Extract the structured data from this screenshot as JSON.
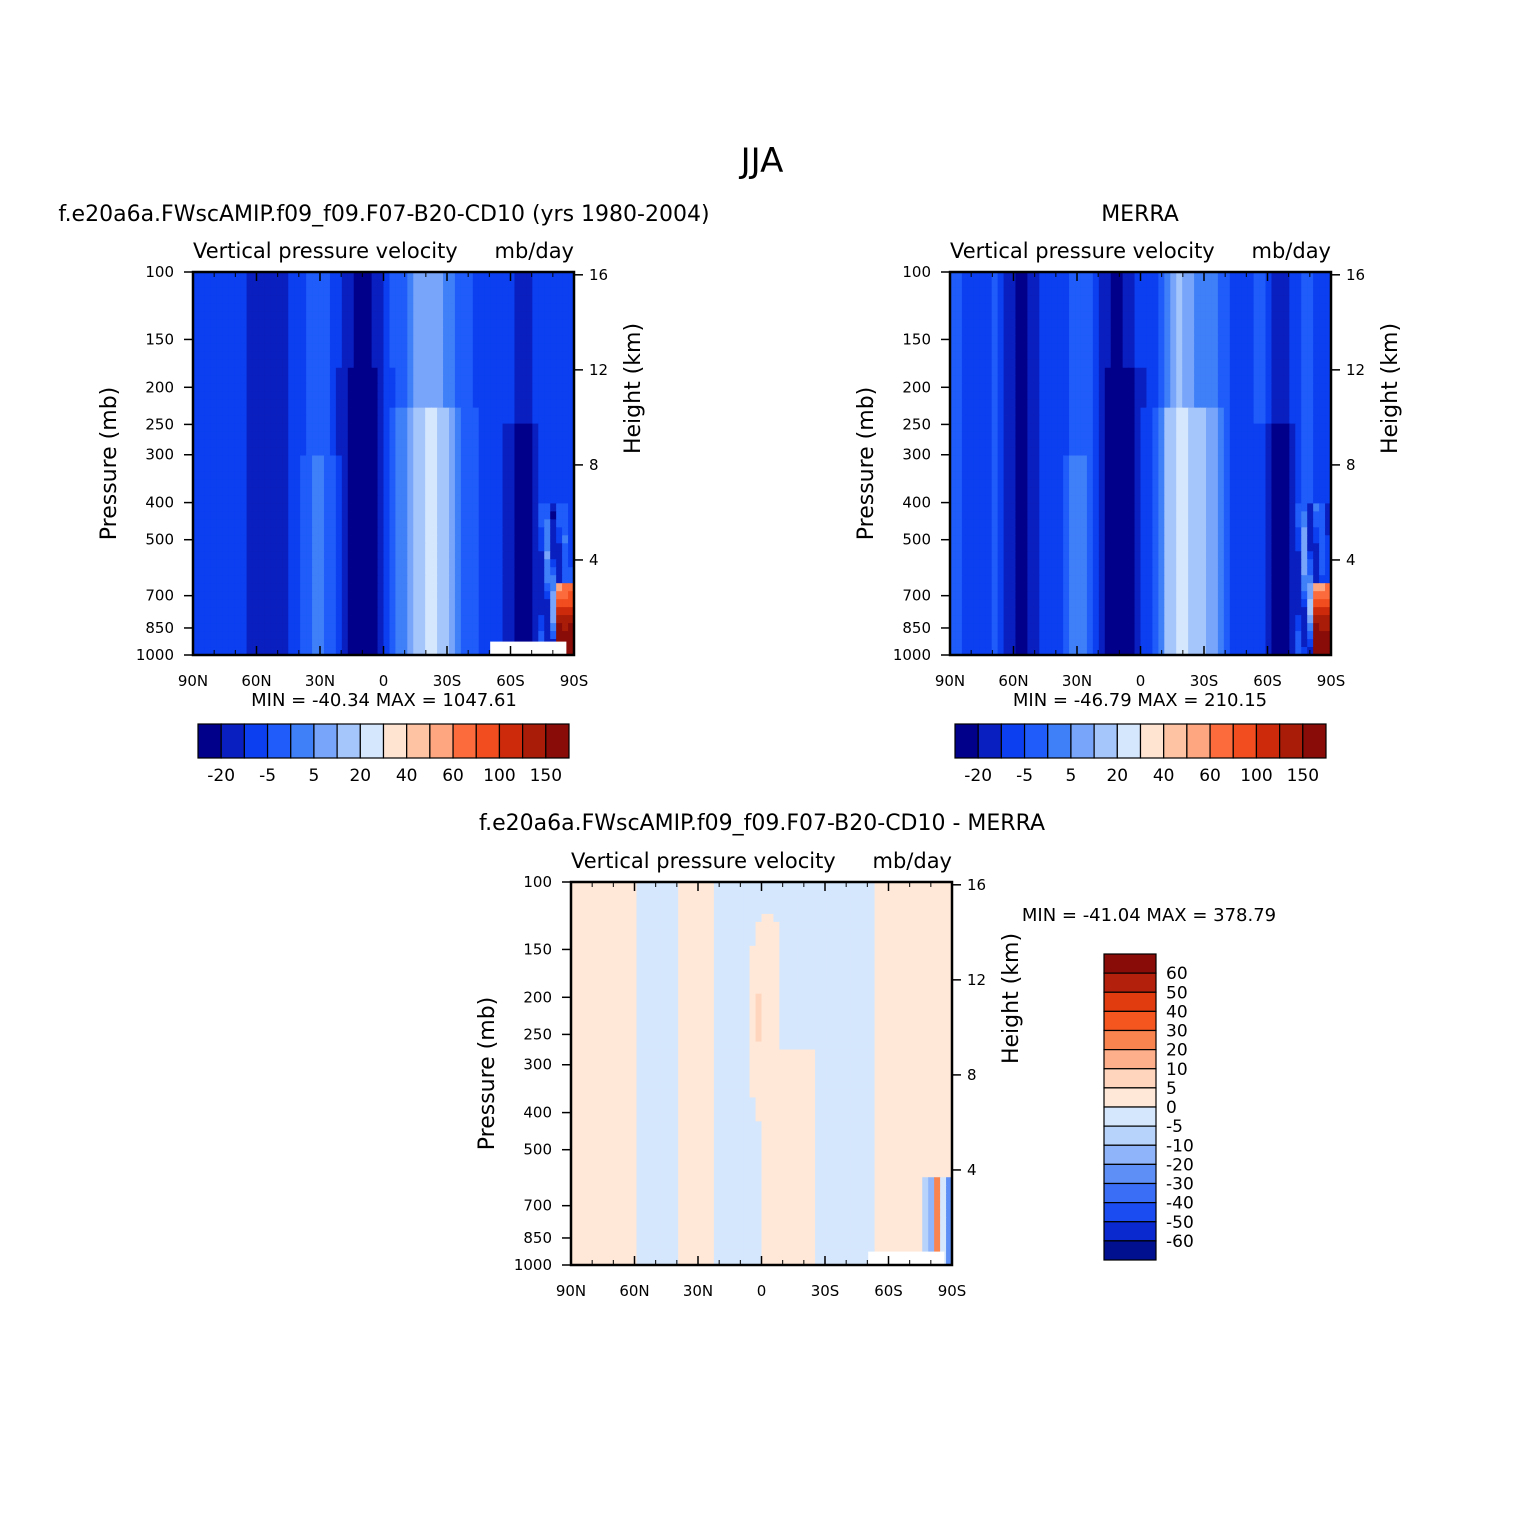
{
  "figure": {
    "title": "JJA"
  },
  "chart_data": [
    {
      "type": "heatmap",
      "title": "f.e20a6a.FWscAMIP.f09_f09.F07-B20-CD10 (yrs 1980-2004)",
      "subtitle_left": "Vertical pressure velocity",
      "subtitle_right": "mb/day",
      "ylabel": "Pressure (mb)",
      "ylabel_right": "Height (km)",
      "x_ticks": [
        "90N",
        "60N",
        "30N",
        "0",
        "30S",
        "60S",
        "90S"
      ],
      "x_values": [
        90,
        60,
        30,
        0,
        -30,
        -60,
        -90
      ],
      "y_ticks": [
        "100",
        "150",
        "200",
        "250",
        "300",
        "400",
        "500",
        "700",
        "850",
        "1000"
      ],
      "y_values": [
        100,
        150,
        200,
        250,
        300,
        400,
        500,
        700,
        850,
        1000
      ],
      "y_right_ticks": [
        "16",
        "12",
        "8",
        "4"
      ],
      "y_right_values": [
        16,
        12,
        8,
        4
      ],
      "minmax_text": "MIN = -40.34   MAX = 1047.61",
      "min": -40.34,
      "max": 1047.61,
      "colorbar_labels": [
        "-20",
        "-5",
        "5",
        "20",
        "40",
        "60",
        "100",
        "150"
      ],
      "colorbar_levels": [
        -20,
        -10,
        -5,
        0,
        5,
        10,
        20,
        30,
        40,
        50,
        60,
        80,
        100,
        120,
        150
      ],
      "colorbar_colors": [
        "#00008a",
        "#0a1fbf",
        "#0b3ff0",
        "#1f5cfa",
        "#3f7ff8",
        "#78a5fa",
        "#a5c6fa",
        "#d5e7fd",
        "#ffe4d2",
        "#fdc3a3",
        "#fda67f",
        "#fb6b3c",
        "#f14d1e",
        "#cc2a0b",
        "#a81c08",
        "#8a0c08"
      ]
    },
    {
      "type": "heatmap",
      "title": "MERRA",
      "subtitle_left": "Vertical pressure velocity",
      "subtitle_right": "mb/day",
      "ylabel": "Pressure (mb)",
      "ylabel_right": "Height (km)",
      "x_ticks": [
        "90N",
        "60N",
        "30N",
        "0",
        "30S",
        "60S",
        "90S"
      ],
      "x_values": [
        90,
        60,
        30,
        0,
        -30,
        -60,
        -90
      ],
      "y_ticks": [
        "100",
        "150",
        "200",
        "250",
        "300",
        "400",
        "500",
        "700",
        "850",
        "1000"
      ],
      "y_values": [
        100,
        150,
        200,
        250,
        300,
        400,
        500,
        700,
        850,
        1000
      ],
      "y_right_ticks": [
        "16",
        "12",
        "8",
        "4"
      ],
      "y_right_values": [
        16,
        12,
        8,
        4
      ],
      "minmax_text": "MIN = -46.79   MAX = 210.15",
      "min": -46.79,
      "max": 210.15,
      "colorbar_labels": [
        "-20",
        "-5",
        "5",
        "20",
        "40",
        "60",
        "100",
        "150"
      ],
      "colorbar_levels": [
        -20,
        -10,
        -5,
        0,
        5,
        10,
        20,
        30,
        40,
        50,
        60,
        80,
        100,
        120,
        150
      ],
      "colorbar_colors": [
        "#00008a",
        "#0a1fbf",
        "#0b3ff0",
        "#1f5cfa",
        "#3f7ff8",
        "#78a5fa",
        "#a5c6fa",
        "#d5e7fd",
        "#ffe4d2",
        "#fdc3a3",
        "#fda67f",
        "#fb6b3c",
        "#f14d1e",
        "#cc2a0b",
        "#a81c08",
        "#8a0c08"
      ]
    },
    {
      "type": "heatmap",
      "title": "f.e20a6a.FWscAMIP.f09_f09.F07-B20-CD10 - MERRA",
      "subtitle_left": "Vertical pressure velocity",
      "subtitle_right": "mb/day",
      "ylabel": "Pressure (mb)",
      "ylabel_right": "Height (km)",
      "x_ticks": [
        "90N",
        "60N",
        "30N",
        "0",
        "30S",
        "60S",
        "90S"
      ],
      "x_values": [
        90,
        60,
        30,
        0,
        -30,
        -60,
        -90
      ],
      "y_ticks": [
        "100",
        "150",
        "200",
        "250",
        "300",
        "400",
        "500",
        "700",
        "850",
        "1000"
      ],
      "y_values": [
        100,
        150,
        200,
        250,
        300,
        400,
        500,
        700,
        850,
        1000
      ],
      "y_right_ticks": [
        "16",
        "12",
        "8",
        "4"
      ],
      "y_right_values": [
        16,
        12,
        8,
        4
      ],
      "minmax_text": "MIN = -41.04   MAX = 378.79",
      "min": -41.04,
      "max": 378.79,
      "colorbar_labels": [
        "60",
        "50",
        "40",
        "30",
        "20",
        "10",
        "5",
        "0",
        "-5",
        "-10",
        "-20",
        "-30",
        "-40",
        "-50",
        "-60"
      ],
      "colorbar_levels": [
        60,
        50,
        40,
        30,
        20,
        10,
        5,
        0,
        -5,
        -10,
        -20,
        -30,
        -40,
        -50,
        -60
      ],
      "colorbar_colors": [
        "#8a0c08",
        "#b3200c",
        "#e03c10",
        "#f5561f",
        "#fa8450",
        "#fdae8a",
        "#ffd5bd",
        "#ffe8d8",
        "#d5e7fd",
        "#b8d3fb",
        "#8fb4fa",
        "#5d8ff6",
        "#3b6ef7",
        "#1a4cf2",
        "#0a2ad0",
        "#00108f"
      ]
    }
  ]
}
